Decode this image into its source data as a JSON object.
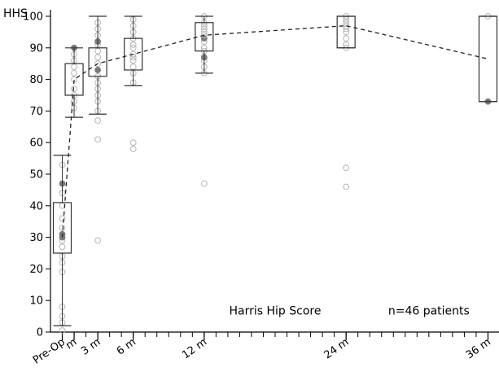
{
  "chart_data": {
    "type": "box",
    "ylabel": "HHS",
    "ylim": [
      0,
      100
    ],
    "yticks": [
      0,
      10,
      20,
      30,
      40,
      50,
      60,
      70,
      80,
      90,
      100
    ],
    "xlim": [
      -1,
      37
    ],
    "xticks": [
      {
        "x": 0,
        "label": "Pre-Op"
      },
      {
        "x": 1,
        "label": "m"
      },
      {
        "x": 3,
        "label": "3 m"
      },
      {
        "x": 6,
        "label": "6 m"
      },
      {
        "x": 12,
        "label": "12 m"
      },
      {
        "x": 24,
        "label": "24 m"
      },
      {
        "x": 36,
        "label": "36 m"
      }
    ],
    "minor_ticks_every": 1,
    "grid": false,
    "annotations": [
      {
        "text": "Harris Hip Score",
        "x": 18,
        "y": 5.5
      },
      {
        "text": "n=46 patients",
        "x": 31,
        "y": 5.5
      }
    ],
    "boxes": [
      {
        "x": 0,
        "q1": 25,
        "median": 31,
        "q3": 41,
        "whisker_low": 2,
        "whisker_high": 56,
        "mean": 30
      },
      {
        "x": 1,
        "q1": 75,
        "median": 79,
        "q3": 85,
        "whisker_low": 68,
        "whisker_high": 90,
        "mean": 80
      },
      {
        "x": 3,
        "q1": 81,
        "median": 84,
        "q3": 90,
        "whisker_low": 69,
        "whisker_high": 100,
        "mean": 85
      },
      {
        "x": 6,
        "q1": 83,
        "median": 89,
        "q3": 93,
        "whisker_low": 78,
        "whisker_high": 100,
        "mean": 88
      },
      {
        "x": 12,
        "q1": 89,
        "median": 93,
        "q3": 98,
        "whisker_low": 82,
        "whisker_high": 100,
        "mean": 94
      },
      {
        "x": 24,
        "q1": 90,
        "median": 97,
        "q3": 100,
        "whisker_low": 90,
        "whisker_high": 100,
        "mean": 97
      },
      {
        "x": 36,
        "q1": 73,
        "median": 100,
        "q3": 100,
        "whisker_low": 73,
        "whisker_high": 100,
        "mean": 86.5
      }
    ],
    "mean_line": {
      "style": "dashed",
      "x": [
        0,
        1,
        3,
        6,
        12,
        24,
        36
      ],
      "y": [
        30,
        80,
        85,
        88,
        94,
        97,
        86.5
      ]
    },
    "points": [
      {
        "x": 0,
        "y": 0.5
      },
      {
        "x": 0,
        "y": 3
      },
      {
        "x": 0,
        "y": 5
      },
      {
        "x": 0,
        "y": 8
      },
      {
        "x": 0,
        "y": 19
      },
      {
        "x": 0,
        "y": 22
      },
      {
        "x": 0,
        "y": 24
      },
      {
        "x": 0,
        "y": 27
      },
      {
        "x": 0,
        "y": 29
      },
      {
        "x": 0,
        "y": 30,
        "filled": true
      },
      {
        "x": 0,
        "y": 31,
        "filled": true
      },
      {
        "x": 0,
        "y": 33
      },
      {
        "x": 0,
        "y": 36
      },
      {
        "x": 0,
        "y": 40
      },
      {
        "x": 0,
        "y": 44
      },
      {
        "x": 0,
        "y": 47,
        "filled": true
      },
      {
        "x": 0,
        "y": 53
      },
      {
        "x": 1,
        "y": 71
      },
      {
        "x": 1,
        "y": 73
      },
      {
        "x": 1,
        "y": 75
      },
      {
        "x": 1,
        "y": 77
      },
      {
        "x": 1,
        "y": 80
      },
      {
        "x": 1,
        "y": 82
      },
      {
        "x": 1,
        "y": 84
      },
      {
        "x": 1,
        "y": 86
      },
      {
        "x": 1,
        "y": 88
      },
      {
        "x": 1,
        "y": 90,
        "filled": true
      },
      {
        "x": 3,
        "y": 29
      },
      {
        "x": 3,
        "y": 61
      },
      {
        "x": 3,
        "y": 67
      },
      {
        "x": 3,
        "y": 70
      },
      {
        "x": 3,
        "y": 73
      },
      {
        "x": 3,
        "y": 75
      },
      {
        "x": 3,
        "y": 77
      },
      {
        "x": 3,
        "y": 79
      },
      {
        "x": 3,
        "y": 81
      },
      {
        "x": 3,
        "y": 83,
        "filled": true
      },
      {
        "x": 3,
        "y": 85
      },
      {
        "x": 3,
        "y": 87
      },
      {
        "x": 3,
        "y": 89
      },
      {
        "x": 3,
        "y": 91
      },
      {
        "x": 3,
        "y": 92,
        "filled": true
      },
      {
        "x": 3,
        "y": 94
      },
      {
        "x": 3,
        "y": 96
      },
      {
        "x": 3,
        "y": 98
      },
      {
        "x": 6,
        "y": 58
      },
      {
        "x": 6,
        "y": 60
      },
      {
        "x": 6,
        "y": 79
      },
      {
        "x": 6,
        "y": 82
      },
      {
        "x": 6,
        "y": 84
      },
      {
        "x": 6,
        "y": 86
      },
      {
        "x": 6,
        "y": 87
      },
      {
        "x": 6,
        "y": 88
      },
      {
        "x": 6,
        "y": 90
      },
      {
        "x": 6,
        "y": 91
      },
      {
        "x": 6,
        "y": 93
      },
      {
        "x": 6,
        "y": 95
      },
      {
        "x": 6,
        "y": 97
      },
      {
        "x": 6,
        "y": 99
      },
      {
        "x": 12,
        "y": 47
      },
      {
        "x": 12,
        "y": 82
      },
      {
        "x": 12,
        "y": 84
      },
      {
        "x": 12,
        "y": 86
      },
      {
        "x": 12,
        "y": 87,
        "filled": true
      },
      {
        "x": 12,
        "y": 89
      },
      {
        "x": 12,
        "y": 90
      },
      {
        "x": 12,
        "y": 92
      },
      {
        "x": 12,
        "y": 93,
        "filled": true
      },
      {
        "x": 12,
        "y": 94
      },
      {
        "x": 12,
        "y": 95
      },
      {
        "x": 12,
        "y": 96
      },
      {
        "x": 12,
        "y": 97
      },
      {
        "x": 12,
        "y": 98
      },
      {
        "x": 12,
        "y": 100
      },
      {
        "x": 24,
        "y": 46
      },
      {
        "x": 24,
        "y": 52
      },
      {
        "x": 24,
        "y": 90
      },
      {
        "x": 24,
        "y": 91
      },
      {
        "x": 24,
        "y": 93
      },
      {
        "x": 24,
        "y": 95
      },
      {
        "x": 24,
        "y": 96
      },
      {
        "x": 24,
        "y": 97
      },
      {
        "x": 24,
        "y": 98
      },
      {
        "x": 24,
        "y": 99
      },
      {
        "x": 24,
        "y": 100
      },
      {
        "x": 36,
        "y": 73,
        "filled": true
      },
      {
        "x": 36,
        "y": 100
      }
    ]
  },
  "colors": {
    "axis": "#000000",
    "box": "#333333",
    "open_point": "#b5b5b5",
    "filled_point": "#7a7a7a",
    "mean_line": "#222222"
  }
}
